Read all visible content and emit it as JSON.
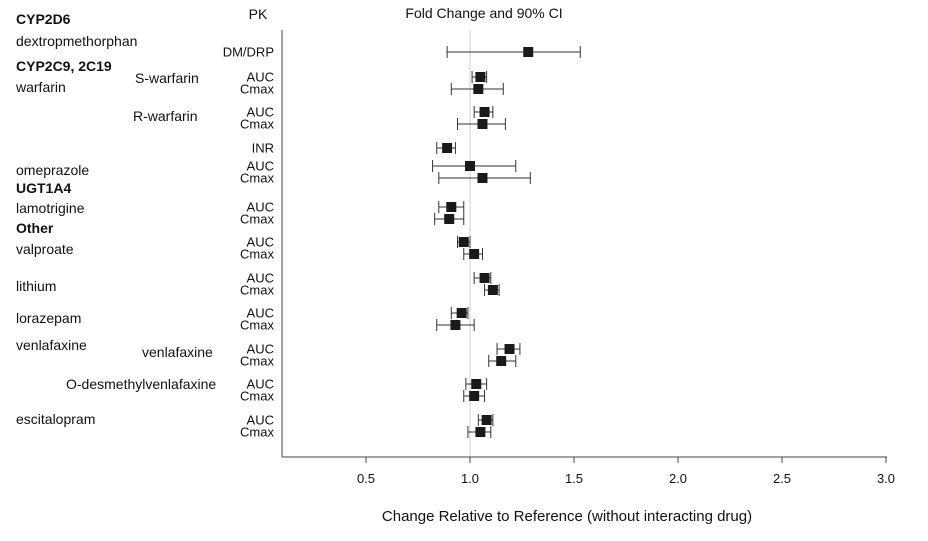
{
  "chart_data": {
    "type": "forest",
    "pk_header": "PK",
    "ci_header": "Fold Change and 90% CI",
    "xlabel": "Change Relative to Reference (without interacting drug)",
    "xlim": [
      0.1,
      3.0
    ],
    "xticks": [
      "0.5",
      "1.0",
      "1.5",
      "2.0",
      "2.5",
      "3.0"
    ],
    "reference_line": 1.0,
    "left_labels": [
      {
        "text": "CYP2D6",
        "bold": true
      },
      {
        "text": "dextropmethorphan",
        "bold": false
      },
      {
        "text": "CYP2C9, 2C19",
        "bold": true
      },
      {
        "text": "warfarin",
        "bold": false
      },
      {
        "text": "S-warfarin",
        "bold": false
      },
      {
        "text": "R-warfarin",
        "bold": false
      },
      {
        "text": "omeprazole",
        "bold": false
      },
      {
        "text": "UGT1A4",
        "bold": true
      },
      {
        "text": "lamotrigine",
        "bold": false
      },
      {
        "text": "Other",
        "bold": true
      },
      {
        "text": "valproate",
        "bold": false
      },
      {
        "text": "lithium",
        "bold": false
      },
      {
        "text": "lorazepam",
        "bold": false
      },
      {
        "text": "venlafaxine",
        "bold": false
      },
      {
        "text": "venlafaxine",
        "bold": false
      },
      {
        "text": "O-desmethylvenlafaxine",
        "bold": false
      },
      {
        "text": "escitalopram",
        "bold": false
      }
    ],
    "rows": [
      {
        "pk": "DM/DRP",
        "estimate": 1.28,
        "lower": 0.89,
        "upper": 1.53
      },
      {
        "pk": "AUC",
        "estimate": 1.05,
        "lower": 1.01,
        "upper": 1.08
      },
      {
        "pk": "Cmax",
        "estimate": 1.04,
        "lower": 0.91,
        "upper": 1.16
      },
      {
        "pk": "AUC",
        "estimate": 1.07,
        "lower": 1.02,
        "upper": 1.11
      },
      {
        "pk": "Cmax",
        "estimate": 1.06,
        "lower": 0.94,
        "upper": 1.17
      },
      {
        "pk": "INR",
        "estimate": 0.89,
        "lower": 0.84,
        "upper": 0.93
      },
      {
        "pk": "AUC",
        "estimate": 1.0,
        "lower": 0.82,
        "upper": 1.22
      },
      {
        "pk": "Cmax",
        "estimate": 1.06,
        "lower": 0.85,
        "upper": 1.29
      },
      {
        "pk": "AUC",
        "estimate": 0.91,
        "lower": 0.85,
        "upper": 0.97
      },
      {
        "pk": "Cmax",
        "estimate": 0.9,
        "lower": 0.83,
        "upper": 0.97
      },
      {
        "pk": "AUC",
        "estimate": 0.97,
        "lower": 0.94,
        "upper": 1.0
      },
      {
        "pk": "Cmax",
        "estimate": 1.02,
        "lower": 0.97,
        "upper": 1.06
      },
      {
        "pk": "AUC",
        "estimate": 1.07,
        "lower": 1.02,
        "upper": 1.1
      },
      {
        "pk": "Cmax",
        "estimate": 1.11,
        "lower": 1.07,
        "upper": 1.14
      },
      {
        "pk": "AUC",
        "estimate": 0.96,
        "lower": 0.91,
        "upper": 0.99
      },
      {
        "pk": "Cmax",
        "estimate": 0.93,
        "lower": 0.84,
        "upper": 1.02
      },
      {
        "pk": "AUC",
        "estimate": 1.19,
        "lower": 1.13,
        "upper": 1.24
      },
      {
        "pk": "Cmax",
        "estimate": 1.15,
        "lower": 1.09,
        "upper": 1.22
      },
      {
        "pk": "AUC",
        "estimate": 1.03,
        "lower": 0.98,
        "upper": 1.08
      },
      {
        "pk": "Cmax",
        "estimate": 1.02,
        "lower": 0.97,
        "upper": 1.07
      },
      {
        "pk": "AUC",
        "estimate": 1.08,
        "lower": 1.04,
        "upper": 1.11
      },
      {
        "pk": "Cmax",
        "estimate": 1.05,
        "lower": 0.99,
        "upper": 1.1
      }
    ]
  }
}
